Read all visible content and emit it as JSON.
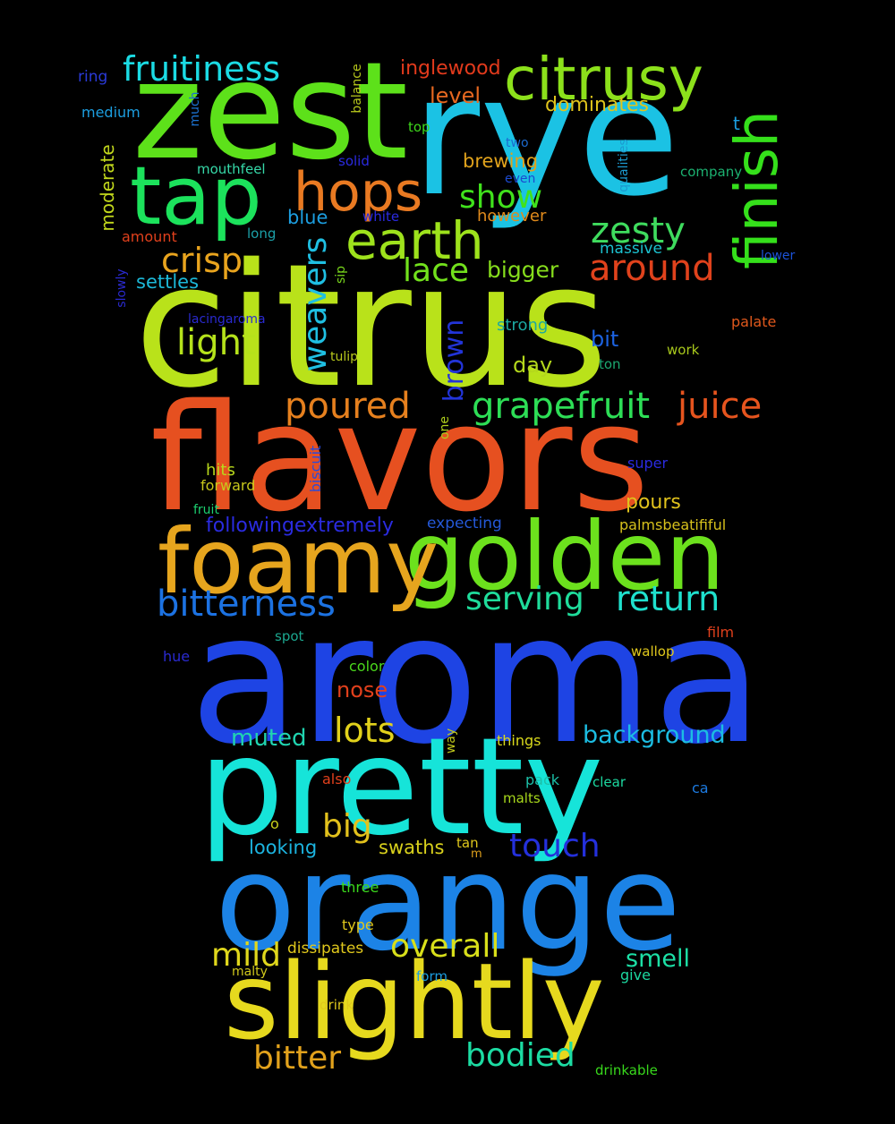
{
  "words": [
    {
      "text": "citrus",
      "color": "#b9e21a"
    },
    {
      "text": "aroma",
      "color": "#1e44e4"
    },
    {
      "text": "rye",
      "color": "#1bc2e4"
    },
    {
      "text": "flavors",
      "color": "#e65020"
    },
    {
      "text": "zest",
      "color": "#5de11a"
    },
    {
      "text": "pretty",
      "color": "#16e4d9"
    },
    {
      "text": "orange",
      "color": "#1c83e6"
    },
    {
      "text": "golden",
      "color": "#6ce11d"
    },
    {
      "text": "foamy",
      "color": "#e6a51e"
    },
    {
      "text": "slightly",
      "color": "#e6d91e"
    },
    {
      "text": "tap",
      "color": "#1ce25c"
    },
    {
      "text": "finish",
      "color": "#35e01b"
    },
    {
      "text": "citrusy",
      "color": "#8ce11b"
    },
    {
      "text": "hops",
      "color": "#e97a22"
    },
    {
      "text": "earth",
      "color": "#9ee21c"
    },
    {
      "text": "grapefruit",
      "color": "#2dde56"
    },
    {
      "text": "juice",
      "color": "#e6541e"
    },
    {
      "text": "fruitiness",
      "color": "#1bdbe4"
    },
    {
      "text": "poured",
      "color": "#e6801e"
    },
    {
      "text": "bitterness",
      "color": "#1c72e2"
    },
    {
      "text": "return",
      "color": "#1fe0cd"
    },
    {
      "text": "serving",
      "color": "#1fdc9b"
    },
    {
      "text": "crisp",
      "color": "#e9a41e"
    },
    {
      "text": "light",
      "color": "#b5e21b"
    },
    {
      "text": "weavers",
      "color": "#1fbfe2"
    },
    {
      "text": "lace",
      "color": "#72e11c"
    },
    {
      "text": "show",
      "color": "#40e21c"
    },
    {
      "text": "zesty",
      "color": "#3fdc5e"
    },
    {
      "text": "around",
      "color": "#e0421c"
    },
    {
      "text": "brown",
      "color": "#2234d8"
    },
    {
      "text": "lots",
      "color": "#e1d11b"
    },
    {
      "text": "touch",
      "color": "#2430dc"
    },
    {
      "text": "overall",
      "color": "#d8df1a"
    },
    {
      "text": "bitter",
      "color": "#e2a21c"
    },
    {
      "text": "bodied",
      "color": "#1cdca3"
    },
    {
      "text": "big",
      "color": "#e2c11c"
    },
    {
      "text": "mild",
      "color": "#e0d71c"
    },
    {
      "text": "background",
      "color": "#1cbde2"
    },
    {
      "text": "muted",
      "color": "#20d4b0"
    },
    {
      "text": "smell",
      "color": "#1ce0a6"
    },
    {
      "text": "bigger",
      "color": "#86dd1c"
    },
    {
      "text": "followingextremely",
      "color": "#2a2be0"
    },
    {
      "text": "inglewood",
      "color": "#e23a1c"
    },
    {
      "text": "level",
      "color": "#e66820"
    },
    {
      "text": "nose",
      "color": "#e2401c"
    },
    {
      "text": "dominates",
      "color": "#e0c41c"
    },
    {
      "text": "brewing",
      "color": "#e0a21c"
    },
    {
      "text": "pours",
      "color": "#e0c21c"
    },
    {
      "text": "day",
      "color": "#b4d81c"
    },
    {
      "text": "bit",
      "color": "#1c62e0"
    },
    {
      "text": "blue",
      "color": "#1c9ee0"
    },
    {
      "text": "however",
      "color": "#e08a1c"
    },
    {
      "text": "moderate",
      "color": "#c2d81c"
    },
    {
      "text": "settles",
      "color": "#1cb8d8"
    },
    {
      "text": "swaths",
      "color": "#d8d01c"
    },
    {
      "text": "looking",
      "color": "#1cb4e0"
    },
    {
      "text": "strong",
      "color": "#1ca8a0"
    },
    {
      "text": "massive",
      "color": "#1cc2d0"
    },
    {
      "text": "mouthfeel",
      "color": "#36d8a8"
    },
    {
      "text": "expecting",
      "color": "#2458d8"
    },
    {
      "text": "palmsbeatififul",
      "color": "#d6c01c"
    },
    {
      "text": "medium",
      "color": "#1c9ee0"
    },
    {
      "text": "ring",
      "color": "#2a3ad8"
    },
    {
      "text": "much",
      "color": "#1c72d0"
    },
    {
      "text": "balance",
      "color": "#b8c81c"
    },
    {
      "text": "top",
      "color": "#3ed81c"
    },
    {
      "text": "two",
      "color": "#1c6ad0"
    },
    {
      "text": "t",
      "color": "#1c9ee0"
    },
    {
      "text": "company",
      "color": "#1cb070"
    },
    {
      "text": "solid",
      "color": "#2a2ae0"
    },
    {
      "text": "even",
      "color": "#1c4ad0"
    },
    {
      "text": "qualities",
      "color": "#1c9ad0"
    },
    {
      "text": "amount",
      "color": "#e0401c"
    },
    {
      "text": "long",
      "color": "#1ca0a8"
    },
    {
      "text": "white",
      "color": "#2a2ae0"
    },
    {
      "text": "lower",
      "color": "#1c52d8"
    },
    {
      "text": "slowly",
      "color": "#2a2ad0"
    },
    {
      "text": "sip",
      "color": "#7ad81c"
    },
    {
      "text": "lacingaroma",
      "color": "#2a2ad0"
    },
    {
      "text": "tulip",
      "color": "#b8c81c"
    },
    {
      "text": "palate",
      "color": "#e0581c"
    },
    {
      "text": "work",
      "color": "#a8c81c"
    },
    {
      "text": "ton",
      "color": "#1ca870"
    },
    {
      "text": "one",
      "color": "#b0d01c"
    },
    {
      "text": "biscuit",
      "color": "#2a4ad8"
    },
    {
      "text": "hits",
      "color": "#b8d81c"
    },
    {
      "text": "forward",
      "color": "#c8c81c"
    },
    {
      "text": "fruit",
      "color": "#1cd070"
    },
    {
      "text": "super",
      "color": "#2a2ae0"
    },
    {
      "text": "film",
      "color": "#e0401c"
    },
    {
      "text": "hue",
      "color": "#2a2ad0"
    },
    {
      "text": "spot",
      "color": "#1ca890"
    },
    {
      "text": "wallop",
      "color": "#e0c81c"
    },
    {
      "text": "color",
      "color": "#4ad81c"
    },
    {
      "text": "way",
      "color": "#c0c81c"
    },
    {
      "text": "things",
      "color": "#d8d81c"
    },
    {
      "text": "also",
      "color": "#e0401c"
    },
    {
      "text": "pack",
      "color": "#1cc0a8"
    },
    {
      "text": "clear",
      "color": "#1cd8a0"
    },
    {
      "text": "ca",
      "color": "#1c7ae0"
    },
    {
      "text": "malts",
      "color": "#a8d81c"
    },
    {
      "text": "o",
      "color": "#c8d01c"
    },
    {
      "text": "tan",
      "color": "#e0c81c"
    },
    {
      "text": "m",
      "color": "#e0a01c"
    },
    {
      "text": "three",
      "color": "#3ad81c"
    },
    {
      "text": "type",
      "color": "#e0c81c"
    },
    {
      "text": "dissipates",
      "color": "#e0c81c"
    },
    {
      "text": "malty",
      "color": "#d0c81c"
    },
    {
      "text": "form",
      "color": "#1c9ee0"
    },
    {
      "text": "give",
      "color": "#1cd8a0"
    },
    {
      "text": "drink",
      "color": "#e0c81c"
    },
    {
      "text": "drinkable",
      "color": "#38d81c"
    }
  ]
}
